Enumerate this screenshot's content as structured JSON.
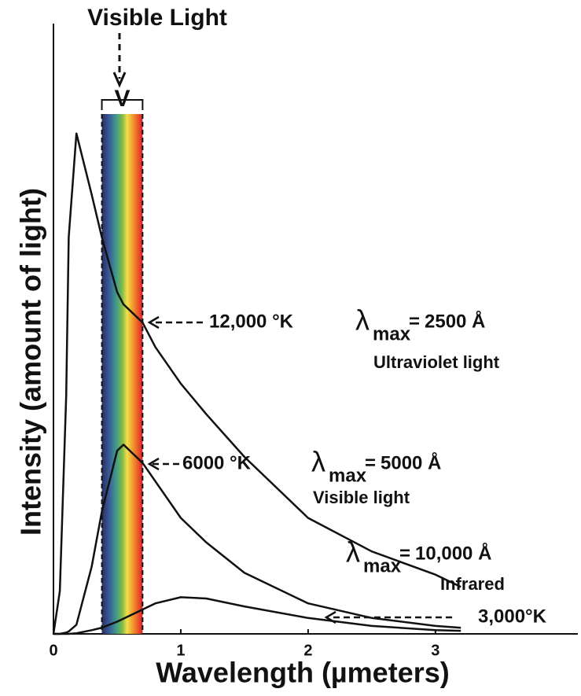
{
  "chart_data": {
    "type": "line",
    "title": "Visible Light",
    "x_label": "Wavelength  (µmeters)",
    "y_label": "Intensity (amount of light)",
    "xlim": [
      0,
      4.1
    ],
    "ylim": [
      0,
      100
    ],
    "xticks": [
      0,
      1,
      2,
      3
    ],
    "visible_band": {
      "label": "V",
      "range": [
        0.38,
        0.7
      ]
    },
    "lambda_symbol": "λ",
    "lambda_subscript": "max",
    "equals_sign": "=",
    "x": [
      0,
      0.05,
      0.1,
      0.12,
      0.18,
      0.3,
      0.38,
      0.5,
      0.55,
      0.7,
      0.8,
      1.0,
      1.2,
      1.5,
      2.0,
      2.5,
      3.0,
      3.2
    ],
    "series": [
      {
        "name": "12,000 °K",
        "color": "#111111",
        "lambda_max": "2500 Å",
        "region": "Ultraviolet light",
        "values": [
          0,
          7,
          39,
          65,
          82,
          72,
          65,
          56,
          54,
          51,
          47,
          41,
          36,
          29,
          19,
          13.5,
          9.7,
          7.7
        ]
      },
      {
        "name": "6000 °K",
        "color": "#111111",
        "lambda_max": "5000 Å",
        "region": "Visible light",
        "values": [
          0,
          0,
          0.2,
          0.4,
          1.5,
          11,
          20,
          30,
          31,
          28,
          25,
          19,
          15,
          10,
          5,
          2.6,
          1.3,
          1
        ]
      },
      {
        "name": "3,000°K",
        "color": "#111111",
        "lambda_max": "10,000 Å",
        "region": "Infrared",
        "values": [
          0,
          0,
          0,
          0,
          0.1,
          0.6,
          1,
          2,
          2.5,
          4,
          5,
          6,
          5.8,
          4.5,
          2.6,
          1.3,
          0.6,
          0.5
        ]
      }
    ]
  }
}
